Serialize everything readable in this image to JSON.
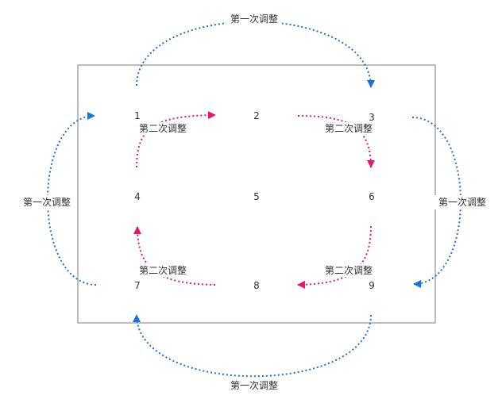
{
  "colors": {
    "first": "#1a73d9",
    "second": "#e6176b",
    "frame": "#a6a6a6",
    "text": "#333333"
  },
  "grid": [
    "1",
    "2",
    "3",
    "4",
    "5",
    "6",
    "7",
    "8",
    "9"
  ],
  "labels": {
    "top": "第一次调整",
    "bottom": "第一次调整",
    "left": "第一次调整",
    "right": "第一次调整",
    "inner_top_left": "第二次调整",
    "inner_top_right": "第二次调整",
    "inner_bottom_left": "第二次调整",
    "inner_bottom_right": "第二次调整"
  }
}
